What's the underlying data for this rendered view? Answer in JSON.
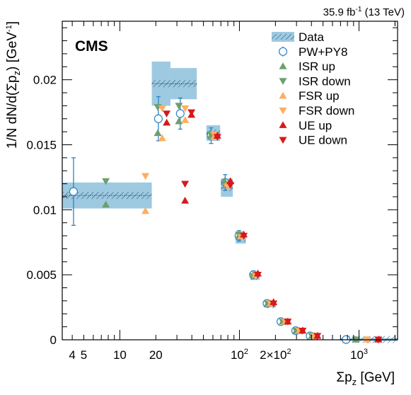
{
  "header": {
    "luminosity_text": "35.9 fb",
    "luminosity_sup": "-1",
    "energy_text": " (13 TeV)"
  },
  "experiment_label": "CMS",
  "chart_data": {
    "type": "scatter",
    "xscale": "log",
    "xlim": [
      3.3,
      2100
    ],
    "ylim": [
      0,
      0.0245
    ],
    "grid": false,
    "legend_position": "top-right",
    "xlabel": {
      "main": "Σp",
      "sub": "z",
      "unit": " [GeV]"
    },
    "ylabel": {
      "a": "1/N dN/d(Σp",
      "sub": "z",
      "b": ") [GeV",
      "sup": "-1",
      "c": "]"
    },
    "x_ticks": [
      {
        "value": 4,
        "label": "4"
      },
      {
        "value": 5,
        "label": "5"
      },
      {
        "value": 10,
        "label": "10"
      },
      {
        "value": 20,
        "label": "20"
      },
      {
        "value": 100,
        "label": "10",
        "sup": "2"
      },
      {
        "value": 200,
        "label": "2×10",
        "sup": "2"
      },
      {
        "value": 1000,
        "label": "10",
        "sup": "3"
      }
    ],
    "y_ticks": [
      {
        "value": 0,
        "label": "0"
      },
      {
        "value": 0.005,
        "label": "0.005"
      },
      {
        "value": 0.01,
        "label": "0.01"
      },
      {
        "value": 0.015,
        "label": "0.015"
      },
      {
        "value": 0.02,
        "label": "0.02"
      }
    ],
    "bins": [
      {
        "lo": 3.3,
        "hi": 18.5,
        "x": 4.1,
        "data": 0.0111,
        "data_unc": 0.001,
        "pwpy8": 0.0114,
        "pwpy8_err": 0.0026,
        "isr_up": 0.0104,
        "isr_down": 0.0122,
        "fsr_up": 0.0099,
        "fsr_down": 0.0126,
        "ue_up": 0.0107,
        "ue_down": 0.012
      },
      {
        "lo": 18.5,
        "hi": 26.5,
        "x": 21,
        "data": 0.0197,
        "data_unc": 0.0017,
        "pwpy8": 0.017,
        "pwpy8_err": 0.0017,
        "isr_up": 0.0159,
        "isr_down": 0.0179,
        "fsr_up": 0.0155,
        "fsr_down": 0.0178,
        "ue_up": 0.0167,
        "ue_down": 0.0174
      },
      {
        "lo": 26.5,
        "hi": 44,
        "x": 32,
        "data": 0.0197,
        "data_unc": 0.0012,
        "pwpy8": 0.0174,
        "pwpy8_err": 0.0012,
        "isr_up": 0.0168,
        "isr_down": 0.018,
        "fsr_up": 0.0169,
        "fsr_down": 0.0178,
        "ue_up": 0.0173,
        "ue_down": 0.0175
      },
      {
        "lo": 53,
        "hi": 69,
        "x": 58,
        "data": 0.0159,
        "data_unc": 0.0006,
        "pwpy8": 0.0157,
        "pwpy8_err": 0.0006,
        "isr_up": 0.0157,
        "isr_down": 0.0158,
        "fsr_up": 0.0156,
        "fsr_down": 0.0158,
        "ue_up": 0.0157,
        "ue_down": 0.0156
      },
      {
        "lo": 70,
        "hi": 88,
        "x": 76,
        "data": 0.0117,
        "data_unc": 0.0007,
        "pwpy8": 0.0121,
        "pwpy8_err": 0.0006,
        "isr_up": 0.0122,
        "isr_down": 0.012,
        "fsr_up": 0.012,
        "fsr_down": 0.0118,
        "ue_up": 0.0122,
        "ue_down": 0.0119
      },
      {
        "lo": 93,
        "hi": 113,
        "x": 99,
        "data": 0.0078,
        "data_unc": 0.0004,
        "pwpy8": 0.008,
        "pwpy8_err": 0.0004,
        "isr_up": 0.008,
        "isr_down": 0.0081,
        "fsr_up": 0.008,
        "fsr_down": 0.0079,
        "ue_up": 0.0081,
        "ue_down": 0.008
      },
      {
        "lo": 123,
        "hi": 148,
        "x": 131,
        "data": 0.0049,
        "data_unc": 0.0003,
        "pwpy8": 0.005,
        "pwpy8_err": 0.0003,
        "isr_up": 0.005,
        "isr_down": 0.0049,
        "fsr_up": 0.005,
        "fsr_down": 0.0049,
        "ue_up": 0.0051,
        "ue_down": 0.005
      },
      {
        "lo": 160,
        "hi": 202,
        "x": 170,
        "data": 0.0027,
        "data_unc": 0.0002,
        "pwpy8": 0.0028,
        "pwpy8_err": 0.0002,
        "isr_up": 0.0028,
        "isr_down": 0.0028,
        "fsr_up": 0.0028,
        "fsr_down": 0.0028,
        "ue_up": 0.0029,
        "ue_down": 0.0028
      },
      {
        "lo": 215,
        "hi": 265,
        "x": 222,
        "data": 0.0014,
        "data_unc": 0.0001,
        "pwpy8": 0.0014,
        "pwpy8_err": 0.0001,
        "isr_up": 0.0014,
        "isr_down": 0.0014,
        "fsr_up": 0.0014,
        "fsr_down": 0.0014,
        "ue_up": 0.0014,
        "ue_down": 0.0014
      },
      {
        "lo": 275,
        "hi": 355,
        "x": 295,
        "data": 0.0007,
        "data_unc": 5e-05,
        "pwpy8": 0.0007,
        "pwpy8_err": 5e-05,
        "isr_up": 0.0007,
        "isr_down": 0.0007,
        "fsr_up": 0.0007,
        "fsr_down": 0.0007,
        "ue_up": 0.0007,
        "ue_down": 0.0007
      },
      {
        "lo": 375,
        "hi": 470,
        "x": 390,
        "data": 0.0003,
        "data_unc": 3e-05,
        "pwpy8": 0.0003,
        "pwpy8_err": 3e-05,
        "isr_up": 0.0003,
        "isr_down": 0.0003,
        "fsr_up": 0.0003,
        "fsr_down": 0.0003,
        "ue_up": 0.0003,
        "ue_down": 0.0003
      },
      {
        "lo": 700,
        "hi": 2100,
        "x": 780,
        "data": 2e-05,
        "data_unc": 1e-05,
        "pwpy8": 2e-05,
        "pwpy8_err": 1e-05,
        "isr_up": 2e-05,
        "isr_down": 2e-05,
        "fsr_up": 2e-05,
        "fsr_down": 2e-05,
        "ue_up": 2e-05,
        "ue_down": 2e-05
      }
    ],
    "legend": [
      {
        "key": "data",
        "label": "Data",
        "color": "#9ecae1",
        "marker": "band"
      },
      {
        "key": "pwpy8",
        "label": "PW+PY8",
        "color": "#2b83c6",
        "marker": "open-circle"
      },
      {
        "key": "isr_up",
        "label": "ISR up",
        "color": "#6f9e6f",
        "marker": "triangle-up"
      },
      {
        "key": "isr_down",
        "label": "ISR down",
        "color": "#6f9e6f",
        "marker": "triangle-down"
      },
      {
        "key": "fsr_up",
        "label": "FSR up",
        "color": "#fdae61",
        "marker": "triangle-up"
      },
      {
        "key": "fsr_down",
        "label": "FSR down",
        "color": "#fdae61",
        "marker": "triangle-down"
      },
      {
        "key": "ue_up",
        "label": "UE up",
        "color": "#d7191c",
        "marker": "triangle-up"
      },
      {
        "key": "ue_down",
        "label": "UE down",
        "color": "#d7191c",
        "marker": "triangle-down"
      }
    ],
    "marker_offsets": {
      "pwpy8": 0,
      "isr_up": 1,
      "isr_down": 1,
      "fsr_up": 2,
      "fsr_down": 2,
      "ue_up": 3,
      "ue_down": 3
    }
  }
}
